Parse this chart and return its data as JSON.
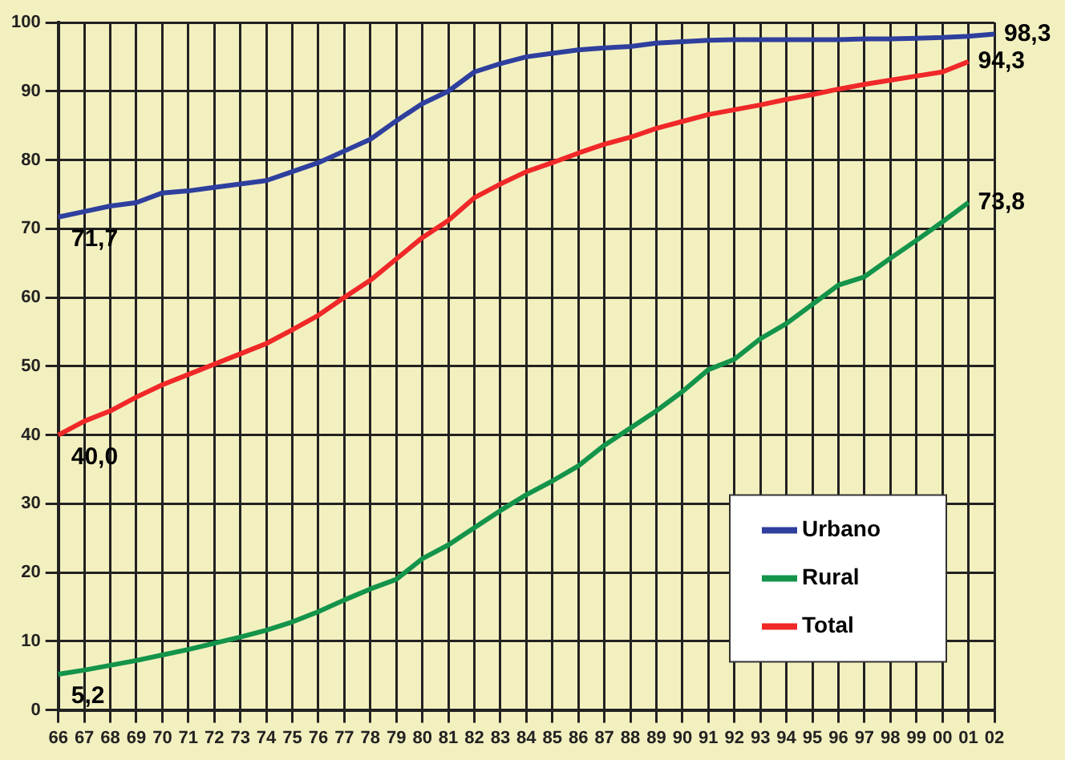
{
  "chart_data": {
    "type": "line",
    "categories": [
      "66",
      "67",
      "68",
      "69",
      "70",
      "71",
      "72",
      "73",
      "74",
      "75",
      "76",
      "77",
      "78",
      "79",
      "80",
      "81",
      "82",
      "83",
      "84",
      "85",
      "86",
      "87",
      "88",
      "89",
      "90",
      "91",
      "92",
      "93",
      "94",
      "95",
      "96",
      "97",
      "98",
      "99",
      "00",
      "01",
      "02"
    ],
    "series": [
      {
        "name": "Urbano",
        "color": "#2e3f9e",
        "values": [
          71.7,
          72.5,
          73.3,
          73.8,
          75.2,
          75.5,
          76,
          76.5,
          77,
          78.3,
          79.6,
          81.3,
          83,
          85.7,
          88.2,
          90,
          92.8,
          94,
          95,
          95.5,
          96,
          96.3,
          96.5,
          97,
          97.2,
          97.4,
          97.5,
          97.5,
          97.5,
          97.5,
          97.5,
          97.6,
          97.6,
          97.7,
          97.8,
          98,
          98.3
        ],
        "value_labels": [
          "71,7",
          null,
          null,
          null,
          null,
          null,
          null,
          null,
          null,
          null,
          null,
          null,
          null,
          null,
          null,
          null,
          null,
          null,
          null,
          null,
          null,
          null,
          null,
          null,
          null,
          null,
          null,
          null,
          null,
          null,
          null,
          null,
          null,
          null,
          null,
          null,
          "98,3"
        ]
      },
      {
        "name": "Rural",
        "color": "#13944a",
        "values": [
          5.2,
          5.8,
          6.5,
          7.2,
          8,
          8.8,
          9.7,
          10.6,
          11.6,
          12.8,
          14.3,
          16,
          17.6,
          19,
          22,
          24,
          26.5,
          29,
          31.3,
          33.3,
          35.5,
          38.5,
          41,
          43.5,
          46.3,
          49.5,
          51,
          54,
          56.2,
          59,
          61.8,
          63,
          65.7,
          68.3,
          71,
          73.8,
          null
        ],
        "value_labels": [
          "5,2",
          null,
          null,
          null,
          null,
          null,
          null,
          null,
          null,
          null,
          null,
          null,
          null,
          null,
          null,
          null,
          null,
          null,
          null,
          null,
          null,
          null,
          null,
          null,
          null,
          null,
          null,
          null,
          null,
          null,
          null,
          null,
          null,
          null,
          null,
          "73,8",
          null
        ]
      },
      {
        "name": "Total",
        "color": "#f02828",
        "values": [
          40,
          42,
          43.5,
          45.5,
          47.3,
          48.8,
          50.3,
          51.8,
          53.3,
          55.3,
          57.4,
          60,
          62.5,
          65.6,
          68.7,
          71.2,
          74.5,
          76.5,
          78.3,
          79.6,
          81,
          82.3,
          83.3,
          84.6,
          85.6,
          86.6,
          87.3,
          88,
          88.8,
          89.5,
          90.3,
          91,
          91.6,
          92.2,
          92.8,
          94.3,
          null
        ],
        "value_labels": [
          "40,0",
          null,
          null,
          null,
          null,
          null,
          null,
          null,
          null,
          null,
          null,
          null,
          null,
          null,
          null,
          null,
          null,
          null,
          null,
          null,
          null,
          null,
          null,
          null,
          null,
          null,
          null,
          null,
          null,
          null,
          null,
          null,
          null,
          null,
          null,
          "94,3",
          null
        ]
      }
    ],
    "ylim": [
      0,
      100
    ],
    "yticks": [
      0,
      10,
      20,
      30,
      40,
      50,
      60,
      70,
      80,
      90,
      100
    ],
    "grid": true,
    "legend": "bottom right",
    "marker": "none",
    "line_style": "solid"
  }
}
